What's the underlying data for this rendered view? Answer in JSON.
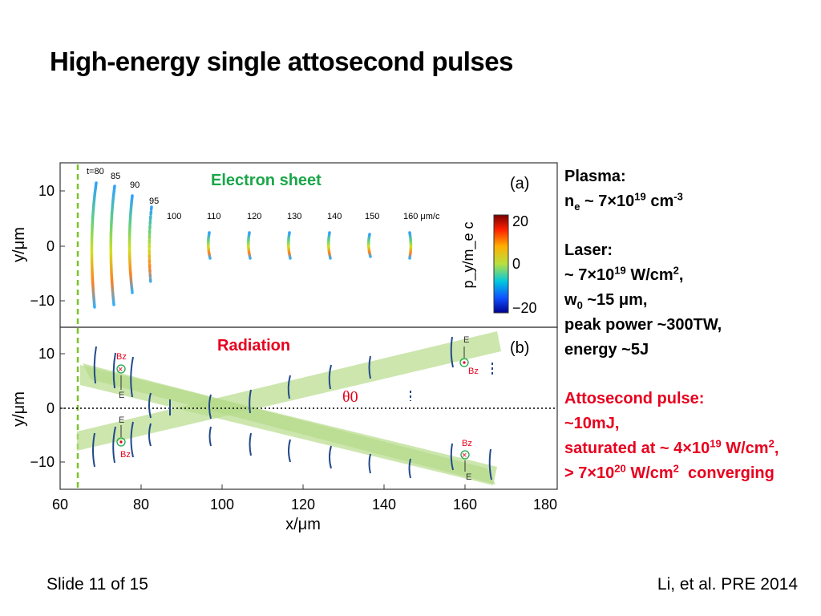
{
  "title": "High-energy single attosecond pulses",
  "footer": {
    "slide": "Slide 11 of 15",
    "reference": "Li, et al. PRE 2014"
  },
  "annotations": {
    "electron_sheet": "Electron sheet",
    "radiation": "Radiation"
  },
  "side": {
    "plasma_head": "Plasma:",
    "ne": {
      "sym": "n",
      "sub": "e",
      "mid": " ~ 7×10",
      "sup": "19",
      "unit": " cm",
      "unit_sup": "-3"
    },
    "laser_head": "Laser:",
    "intensity": {
      "pre": "~ 7×10",
      "sup": "19",
      "mid": " W/cm",
      "sup2": "2",
      "post": ","
    },
    "w0": {
      "sym": "w",
      "sub": "0",
      "post": " ~15 μm,"
    },
    "power": "peak power ~300TW,",
    "energy": "energy ~5J",
    "atto_head": "Attosecond pulse:",
    "atto_energy": " ~10mJ,",
    "saturated": {
      "pre": " saturated at ~ 4×10",
      "sup": "19",
      "mid": " W/cm",
      "sup2": "2",
      "post": ","
    },
    "converging": {
      "pre": "> 7×10",
      "sup": "20",
      "mid": " W/cm",
      "sup2": "2",
      "post": "  converging"
    }
  },
  "chart_data": [
    {
      "type": "scatter",
      "panel": "(a)",
      "ylabel": "y/μm",
      "colorbar_label": "p_y/m_e c",
      "colorbar_ticks": [
        "20",
        "0",
        "−20"
      ],
      "yticks": [
        "10",
        "0",
        "−10"
      ],
      "time_labels": [
        "t=80",
        "85",
        "90",
        "95",
        "100",
        "110",
        "120",
        "130",
        "140",
        "150",
        "160 μm/c"
      ],
      "sheets": [
        {
          "x": 69,
          "y_min": -12,
          "y_max": 12
        },
        {
          "x": 74,
          "y_min": -11,
          "y_max": 10
        },
        {
          "x": 78.5,
          "y_min": -9,
          "y_max": 9
        },
        {
          "x": 82.5,
          "y_min": -7.5,
          "y_max": 7
        },
        {
          "x": 87,
          "y_min": -1,
          "y_max": 1
        },
        {
          "x": 97,
          "y_min": -2.5,
          "y_max": 2.5
        },
        {
          "x": 107,
          "y_min": -2.5,
          "y_max": 2.5
        },
        {
          "x": 117,
          "y_min": -2.5,
          "y_max": 2.5
        },
        {
          "x": 127,
          "y_min": -2.5,
          "y_max": 2.5
        },
        {
          "x": 137,
          "y_min": -2.5,
          "y_max": 2.5
        },
        {
          "x": 147,
          "y_min": -2.5,
          "y_max": 2.5
        }
      ]
    },
    {
      "type": "line",
      "panel": "(b)",
      "ylabel": "y/μm",
      "xlabel": "x/μm",
      "xticks": [
        "60",
        "80",
        "100",
        "120",
        "140",
        "160",
        "180"
      ],
      "yticks": [
        "10",
        "0",
        "−10"
      ],
      "angle_label": "θ0",
      "field_labels": [
        "Bz",
        "E"
      ],
      "xlim": [
        60,
        180
      ],
      "ylim": [
        -15,
        15
      ]
    }
  ]
}
